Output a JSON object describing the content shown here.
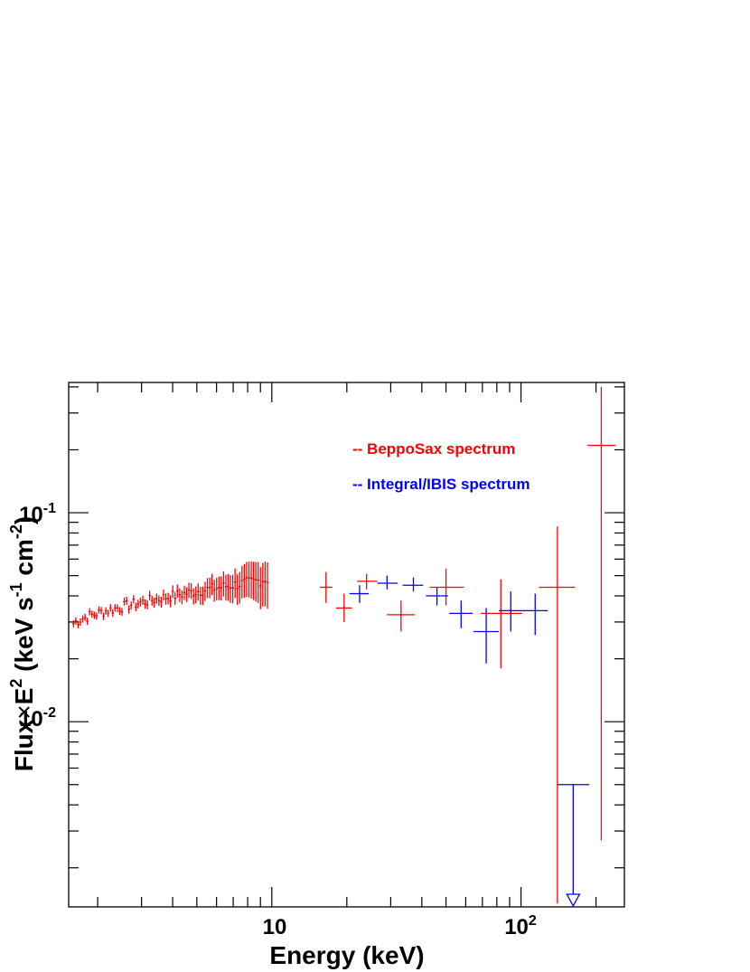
{
  "chart_data": {
    "type": "scatter",
    "x_scale": "log",
    "y_scale": "log",
    "xlim": [
      1.53,
      260
    ],
    "ylim": [
      0.0013,
      0.42
    ],
    "xlabel": "Energy (keV)",
    "ylabel_parts": {
      "a": "Flux",
      "times": "×",
      "b": "E",
      "sup2": "2",
      "c": " (keV s",
      "supm1": "-1",
      "d": " cm",
      "supm2": "-2",
      "e": ")"
    },
    "x_tick_labels": {
      "ten": {
        "base": "10"
      },
      "hundred": {
        "base": "10",
        "exp": "2"
      }
    },
    "y_tick_labels": {
      "tenth": {
        "base": "10",
        "exp": "-1"
      },
      "hundredth": {
        "base": "10",
        "exp": "-2"
      }
    },
    "legend": [
      {
        "prefix": "-- ",
        "label": "BeppoSax spectrum",
        "color": "#ff0000"
      },
      {
        "prefix": "-- ",
        "label": "Integral/IBIS spectrum",
        "color": "#0000ff"
      }
    ],
    "colors": {
      "bepposax": "#ff0000",
      "integral": "#0000ff",
      "axes": "#000000"
    },
    "series": [
      {
        "name": "BeppoSax spectrum",
        "color": "#ff0000",
        "lecs_mecs": {
          "x_start": 1.6,
          "x_end": 9.6,
          "y_start": 0.0295,
          "y_end": 0.048,
          "count": 85,
          "err_rel_start": 0.04,
          "err_rel_end": 0.25
        },
        "points": [
          {
            "x": 16.5,
            "y": 0.044,
            "xlo": 15.6,
            "xhi": 17.5,
            "ylo": 0.037,
            "yhi": 0.052
          },
          {
            "x": 19.5,
            "y": 0.035,
            "xlo": 18.1,
            "xhi": 21.0,
            "ylo": 0.03,
            "yhi": 0.041
          },
          {
            "x": 24.0,
            "y": 0.047,
            "xlo": 22.0,
            "xhi": 26.5,
            "ylo": 0.043,
            "yhi": 0.051
          },
          {
            "x": 33.0,
            "y": 0.0325,
            "xlo": 29.0,
            "xhi": 37.5,
            "ylo": 0.027,
            "yhi": 0.038
          },
          {
            "x": 50.0,
            "y": 0.044,
            "xlo": 43.0,
            "xhi": 59.0,
            "ylo": 0.036,
            "yhi": 0.054
          },
          {
            "x": 83.0,
            "y": 0.033,
            "xlo": 69.0,
            "xhi": 101.0,
            "ylo": 0.018,
            "yhi": 0.048
          },
          {
            "x": 140.0,
            "y": 0.044,
            "xlo": 118.0,
            "xhi": 165.0,
            "ylo": 0.00135,
            "yhi": 0.086
          },
          {
            "x": 210.0,
            "y": 0.21,
            "xlo": 185.0,
            "xhi": 240.0,
            "ylo": 0.0027,
            "yhi": 0.4
          }
        ]
      },
      {
        "name": "Integral/IBIS spectrum",
        "color": "#0000ff",
        "points": [
          {
            "x": 22.5,
            "y": 0.041,
            "xlo": 20.5,
            "xhi": 24.5,
            "ylo": 0.037,
            "yhi": 0.045
          },
          {
            "x": 29.0,
            "y": 0.046,
            "xlo": 26.5,
            "xhi": 32.0,
            "ylo": 0.043,
            "yhi": 0.05
          },
          {
            "x": 37.0,
            "y": 0.045,
            "xlo": 33.5,
            "xhi": 40.5,
            "ylo": 0.042,
            "yhi": 0.049
          },
          {
            "x": 46.0,
            "y": 0.04,
            "xlo": 41.5,
            "xhi": 51.0,
            "ylo": 0.036,
            "yhi": 0.044
          },
          {
            "x": 57.5,
            "y": 0.033,
            "xlo": 51.5,
            "xhi": 64.0,
            "ylo": 0.028,
            "yhi": 0.038
          },
          {
            "x": 72.5,
            "y": 0.027,
            "xlo": 64.5,
            "xhi": 81.5,
            "ylo": 0.019,
            "yhi": 0.035
          },
          {
            "x": 91.0,
            "y": 0.034,
            "xlo": 81.5,
            "xhi": 101.0,
            "ylo": 0.027,
            "yhi": 0.042
          },
          {
            "x": 114.0,
            "y": 0.034,
            "xlo": 101.0,
            "xhi": 128.0,
            "ylo": 0.026,
            "yhi": 0.041
          },
          {
            "x": 162.0,
            "y": 0.005,
            "xlo": 140.0,
            "xhi": 188.0,
            "ylo": 0.00135,
            "yhi": 0.005,
            "upper_limit": true
          }
        ]
      }
    ]
  }
}
